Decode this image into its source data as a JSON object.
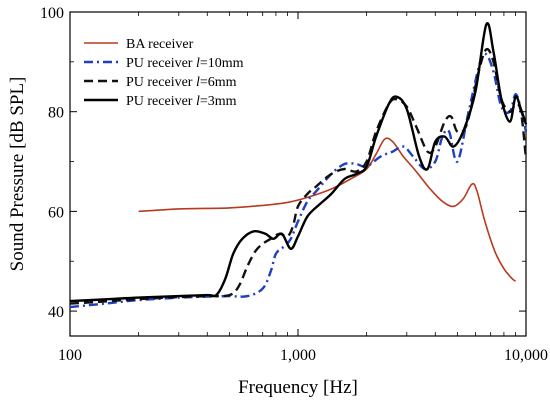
{
  "chart_data": {
    "type": "line",
    "title": "",
    "xlabel": "Frequency [Hz]",
    "ylabel": "Sound Pressure [dB SPL]",
    "xscale": "log",
    "xlim": [
      100,
      10000
    ],
    "ylim": [
      35,
      100
    ],
    "x_ticks": [
      100,
      1000,
      10000
    ],
    "x_tick_labels": [
      "100",
      "1,000",
      "10,000"
    ],
    "y_ticks": [
      40,
      60,
      80,
      100
    ],
    "y_tick_labels": [
      "40",
      "60",
      "80",
      "100"
    ],
    "grid": false,
    "legend": {
      "placement": "top-left"
    },
    "series": [
      {
        "name": "BA receiver",
        "color": "#b83a1f",
        "dash": "solid",
        "points": [
          [
            200,
            60
          ],
          [
            300,
            60.5
          ],
          [
            500,
            60.7
          ],
          [
            700,
            61.2
          ],
          [
            900,
            61.8
          ],
          [
            1100,
            62.8
          ],
          [
            1400,
            64.5
          ],
          [
            1700,
            66.5
          ],
          [
            2000,
            68.5
          ],
          [
            2200,
            71.5
          ],
          [
            2400,
            74.5
          ],
          [
            2600,
            74
          ],
          [
            2900,
            71
          ],
          [
            3300,
            68
          ],
          [
            3800,
            64.5
          ],
          [
            4300,
            62
          ],
          [
            4800,
            61
          ],
          [
            5300,
            62.5
          ],
          [
            5800,
            65.5
          ],
          [
            6100,
            64
          ],
          [
            6600,
            58
          ],
          [
            7300,
            52
          ],
          [
            8000,
            48.5
          ],
          [
            8700,
            46.5
          ],
          [
            9000,
            46
          ]
        ]
      },
      {
        "name": "PU receiver l=10mm",
        "label_parts": [
          "PU receiver ",
          "l",
          "=10mm"
        ],
        "color": "#1f3fc4",
        "dash": "dashdot",
        "points": [
          [
            100,
            40.8
          ],
          [
            150,
            41.6
          ],
          [
            200,
            42.2
          ],
          [
            300,
            42.7
          ],
          [
            400,
            42.9
          ],
          [
            500,
            43
          ],
          [
            600,
            43
          ],
          [
            700,
            44.5
          ],
          [
            760,
            48
          ],
          [
            800,
            51.5
          ],
          [
            870,
            53
          ],
          [
            930,
            54.5
          ],
          [
            1000,
            58
          ],
          [
            1100,
            62
          ],
          [
            1200,
            64
          ],
          [
            1400,
            67.5
          ],
          [
            1600,
            69.5
          ],
          [
            1800,
            69.5
          ],
          [
            2000,
            69
          ],
          [
            2300,
            71
          ],
          [
            2600,
            72
          ],
          [
            2900,
            73
          ],
          [
            3200,
            71
          ],
          [
            3600,
            68.5
          ],
          [
            4000,
            70
          ],
          [
            4300,
            75
          ],
          [
            4600,
            76
          ],
          [
            5000,
            70
          ],
          [
            5600,
            80
          ],
          [
            6300,
            90
          ],
          [
            6700,
            91.5
          ],
          [
            7200,
            88
          ],
          [
            7800,
            81
          ],
          [
            8500,
            80
          ],
          [
            9000,
            83.5
          ],
          [
            9500,
            80.5
          ],
          [
            10000,
            76
          ]
        ]
      },
      {
        "name": "PU receiver l=6mm",
        "label_parts": [
          "PU receiver ",
          "l",
          "=6mm"
        ],
        "color": "#111111",
        "dash": "dashed",
        "points": [
          [
            100,
            41.5
          ],
          [
            150,
            42
          ],
          [
            200,
            42.4
          ],
          [
            300,
            42.8
          ],
          [
            400,
            43
          ],
          [
            500,
            43.2
          ],
          [
            550,
            45
          ],
          [
            600,
            49
          ],
          [
            650,
            52
          ],
          [
            700,
            53.5
          ],
          [
            760,
            54.5
          ],
          [
            830,
            55.5
          ],
          [
            900,
            55
          ],
          [
            950,
            57
          ],
          [
            1000,
            61
          ],
          [
            1100,
            63.5
          ],
          [
            1200,
            65
          ],
          [
            1400,
            67.5
          ],
          [
            1600,
            68.5
          ],
          [
            1800,
            68
          ],
          [
            2000,
            70
          ],
          [
            2200,
            76
          ],
          [
            2500,
            81.5
          ],
          [
            2700,
            82.5
          ],
          [
            3000,
            81
          ],
          [
            3300,
            77
          ],
          [
            3700,
            72
          ],
          [
            4000,
            73
          ],
          [
            4400,
            78
          ],
          [
            4700,
            79
          ],
          [
            5000,
            76
          ],
          [
            5500,
            77.5
          ],
          [
            6200,
            88
          ],
          [
            6700,
            92.5
          ],
          [
            7200,
            90
          ],
          [
            7800,
            82.5
          ],
          [
            8500,
            80
          ],
          [
            9000,
            81.5
          ],
          [
            9500,
            80
          ],
          [
            10000,
            70.5
          ]
        ]
      },
      {
        "name": "PU receiver l=3mm",
        "label_parts": [
          "PU receiver ",
          "l",
          "=3mm"
        ],
        "color": "#000000",
        "dash": "solid",
        "points": [
          [
            100,
            42
          ],
          [
            150,
            42.4
          ],
          [
            200,
            42.7
          ],
          [
            300,
            43
          ],
          [
            400,
            43.2
          ],
          [
            440,
            43.3
          ],
          [
            480,
            46.5
          ],
          [
            520,
            51.5
          ],
          [
            570,
            54.5
          ],
          [
            640,
            56
          ],
          [
            720,
            55.5
          ],
          [
            780,
            54.5
          ],
          [
            850,
            55.5
          ],
          [
            930,
            52.5
          ],
          [
            1000,
            55
          ],
          [
            1100,
            59
          ],
          [
            1250,
            61.5
          ],
          [
            1400,
            63.5
          ],
          [
            1600,
            66.5
          ],
          [
            1800,
            67.5
          ],
          [
            2000,
            69
          ],
          [
            2200,
            75
          ],
          [
            2500,
            81.5
          ],
          [
            2700,
            83
          ],
          [
            3000,
            80.5
          ],
          [
            3400,
            71
          ],
          [
            3700,
            68.5
          ],
          [
            4000,
            74
          ],
          [
            4400,
            75
          ],
          [
            4800,
            73
          ],
          [
            5300,
            76
          ],
          [
            6000,
            84
          ],
          [
            6700,
            97.5
          ],
          [
            7200,
            92
          ],
          [
            7800,
            82.5
          ],
          [
            8500,
            78
          ],
          [
            9000,
            83
          ],
          [
            9500,
            80.5
          ],
          [
            10000,
            77.5
          ]
        ]
      }
    ]
  }
}
